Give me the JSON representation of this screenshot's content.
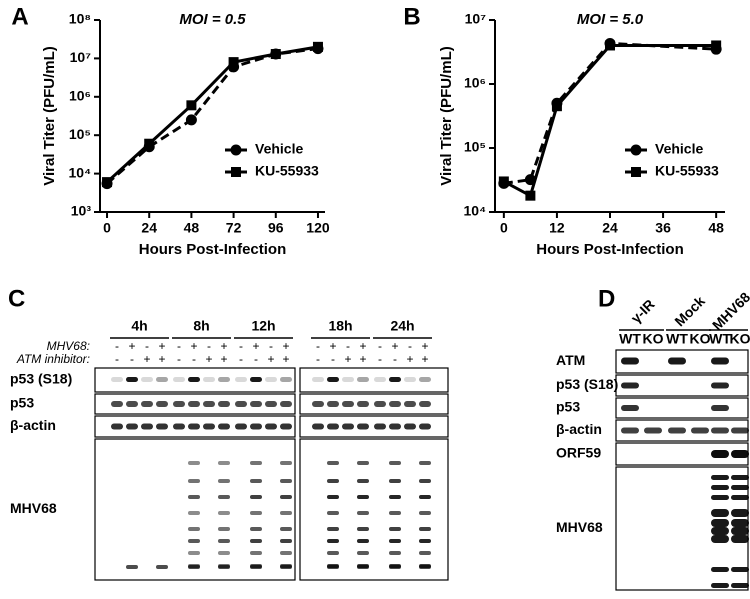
{
  "chart_data": [
    {
      "type": "line",
      "panel": "A",
      "title": "MOI = 0.5",
      "y_label": "Viral Titer (PFU/mL)",
      "x_label": "Hours Post-Infection",
      "x": [
        0,
        24,
        48,
        72,
        96,
        120
      ],
      "xlim": [
        -4,
        124
      ],
      "xticks": [
        0,
        24,
        48,
        72,
        96,
        120
      ],
      "log_y": true,
      "ylim": [
        1000,
        100000000
      ],
      "yticks": [
        {
          "value": 1000,
          "label": "10³"
        },
        {
          "value": 10000,
          "label": "10⁴"
        },
        {
          "value": 100000,
          "label": "10⁵"
        },
        {
          "value": 1000000,
          "label": "10⁶"
        },
        {
          "value": 10000000,
          "label": "10⁷"
        },
        {
          "value": 100000000,
          "label": "10⁸"
        }
      ],
      "legend": "lower right",
      "series": [
        {
          "name": "Vehicle",
          "color": "#000000",
          "marker": "circle",
          "line_style": "dashed",
          "values": [
            5500,
            50000,
            250000,
            6000000,
            13000000,
            18000000
          ]
        },
        {
          "name": "KU-55933",
          "color": "#000000",
          "marker": "square",
          "line_style": "solid",
          "values": [
            6000,
            60000,
            600000,
            8000000,
            13000000,
            20000000
          ]
        }
      ]
    },
    {
      "type": "line",
      "panel": "B",
      "title": "MOI = 5.0",
      "y_label": "Viral Titer (PFU/mL)",
      "x_label": "Hours Post-Infection",
      "x": [
        0,
        6,
        12,
        24,
        48
      ],
      "xlim": [
        -2,
        50
      ],
      "xticks": [
        0,
        12,
        24,
        36,
        48
      ],
      "log_y": true,
      "ylim": [
        10000,
        10000000
      ],
      "yticks": [
        {
          "value": 10000,
          "label": "10⁴"
        },
        {
          "value": 100000,
          "label": "10⁵"
        },
        {
          "value": 1000000,
          "label": "10⁶"
        },
        {
          "value": 10000000,
          "label": "10⁷"
        }
      ],
      "legend": "lower right",
      "series": [
        {
          "name": "Vehicle",
          "color": "#000000",
          "marker": "circle",
          "line_style": "dashed",
          "values": [
            28000,
            32000,
            500000,
            4300000,
            3500000
          ]
        },
        {
          "name": "KU-55933",
          "color": "#000000",
          "marker": "square",
          "line_style": "solid",
          "values": [
            30000,
            18000,
            450000,
            4000000,
            4000000
          ]
        }
      ]
    }
  ],
  "panel_c": {
    "label": "C",
    "timepoints": [
      "4h",
      "8h",
      "12h",
      "18h",
      "24h"
    ],
    "mhv68_label": "MHV68:",
    "atm_label": "ATM inhibitor:",
    "mhv68_signs": [
      "-",
      "+",
      "-",
      "+",
      "-",
      "+",
      "-",
      "+",
      "-",
      "+",
      "-",
      "+",
      "-",
      "+",
      "-",
      "+",
      "-",
      "+",
      "-",
      "+"
    ],
    "atm_signs": [
      "-",
      "-",
      "+",
      "+",
      "-",
      "-",
      "+",
      "+",
      "-",
      "-",
      "+",
      "+",
      "-",
      "-",
      "+",
      "+",
      "-",
      "-",
      "+",
      "+"
    ],
    "blots": [
      "p53 (S18)",
      "p53",
      "β-actin",
      "MHV68"
    ]
  },
  "panel_d": {
    "label": "D",
    "conditions": [
      "γ-IR",
      "Mock",
      "MHV68"
    ],
    "genotypes": [
      "WT",
      "KO",
      "WT",
      "KO",
      "WT",
      "KO"
    ],
    "blots": [
      "ATM",
      "p53 (S18)",
      "p53",
      "β-actin",
      "ORF59",
      "MHV68"
    ]
  }
}
